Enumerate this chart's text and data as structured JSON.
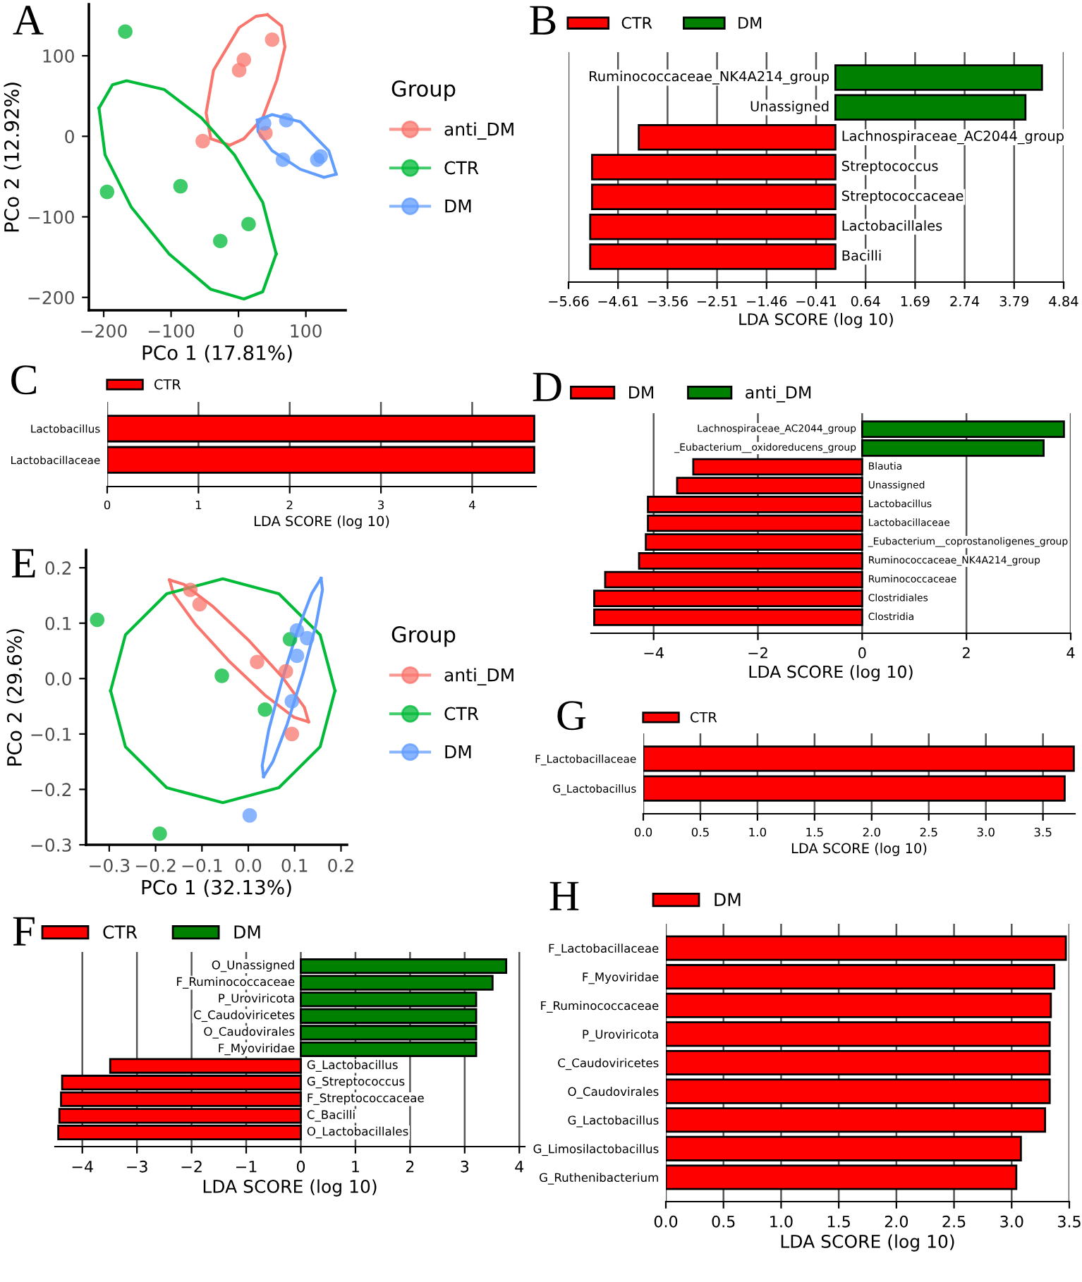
{
  "chart_data": [
    {
      "type": "scatter",
      "title": "A",
      "xlabel": "PCo 1 (17.81%)",
      "ylabel": "PCo 2 (12.92%)",
      "legend_title": "Group",
      "legend": "right",
      "marker": "circle",
      "grid": false,
      "xlim": [
        -222,
        159
      ],
      "ylim": [
        -216,
        164
      ],
      "xticks": [
        {
          "value": -200,
          "label": "−200"
        },
        {
          "value": -100,
          "label": "−100"
        },
        0,
        100
      ],
      "yticks": [
        {
          "value": -200,
          "label": "−200"
        },
        {
          "value": -100,
          "label": "−100"
        },
        0,
        100
      ],
      "series": [
        {
          "name": "anti_DM",
          "type": "scatter",
          "color": "#f8766d",
          "x": [
            50,
            8,
            1,
            -53,
            40
          ],
          "values": [
            120,
            95,
            82,
            -6,
            4
          ]
        },
        {
          "name": "CTR",
          "type": "scatter",
          "color": "#00ba38",
          "x": [
            -168,
            -195,
            -86,
            15,
            -27
          ],
          "values": [
            130,
            -69,
            -62,
            -109,
            -130
          ]
        },
        {
          "name": "DM",
          "type": "scatter",
          "color": "#619cff",
          "x": [
            38,
            71,
            66,
            117,
            122
          ],
          "values": [
            16,
            20,
            -29,
            -29,
            -25
          ]
        },
        {
          "type": "line",
          "marker": "none",
          "color": "#f8766d",
          "x": [
            -13,
            -41,
            -48,
            -37,
            1,
            26,
            43
          ],
          "values": [
            -11,
            -3,
            29,
            82,
            135,
            149,
            151
          ]
        },
        {
          "type": "line",
          "marker": "none",
          "color": "#f8766d",
          "x": [
            -13,
            8,
            36,
            57,
            69,
            64,
            43
          ],
          "values": [
            -11,
            -3,
            23,
            70,
            111,
            137,
            151
          ]
        },
        {
          "type": "line",
          "marker": "none",
          "color": "#00ba38",
          "x": [
            -207,
            -187,
            -166,
            -110,
            -55,
            -6,
            36,
            56
          ],
          "values": [
            35,
            64,
            69,
            58,
            23,
            -23,
            -82,
            -146
          ]
        },
        {
          "type": "line",
          "marker": "none",
          "color": "#00ba38",
          "x": [
            -207,
            -198,
            -159,
            -103,
            -41,
            8,
            36,
            56
          ],
          "values": [
            35,
            -23,
            -88,
            -146,
            -190,
            -202,
            -193,
            -146
          ]
        },
        {
          "type": "line",
          "marker": "none",
          "color": "#619cff",
          "x": [
            28,
            50,
            92,
            134,
            145
          ],
          "values": [
            20,
            27,
            18,
            -18,
            -47
          ]
        },
        {
          "type": "line",
          "marker": "none",
          "color": "#619cff",
          "x": [
            28,
            29,
            50,
            92,
            127,
            145
          ],
          "values": [
            20,
            6,
            -18,
            -41,
            -51,
            -47
          ]
        }
      ]
    },
    {
      "type": "bar",
      "title": "B",
      "orientation": "horizontal",
      "xlabel": "LDA SCORE (log 10)",
      "legend": "top left",
      "grid": "x",
      "xlim": [
        -5.66,
        4.84
      ],
      "xticks": [
        {
          "value": -5.66,
          "label": "−5.66"
        },
        {
          "value": -4.61,
          "label": "−4.61"
        },
        {
          "value": -3.56,
          "label": "−3.56"
        },
        {
          "value": -2.51,
          "label": "−2.51"
        },
        {
          "value": -1.46,
          "label": "−1.46"
        },
        {
          "value": -0.41,
          "label": "−0.41"
        },
        0.64,
        1.69,
        2.74,
        3.79,
        4.84
      ],
      "categories": [
        "Ruminococcaceae_NK4A214_group",
        "Unassigned",
        "Lachnospiraceae_AC2044_group",
        "Streptococcus",
        "Streptococcaceae",
        "Lactobacillales",
        "Bacilli"
      ],
      "series": [
        {
          "name": "CTR",
          "color": "#ff0000",
          "values": [
            null,
            null,
            -4.17,
            -5.16,
            -5.16,
            -5.2,
            -5.2
          ]
        },
        {
          "name": "DM",
          "color": "#008000",
          "values": [
            4.38,
            4.03,
            null,
            null,
            null,
            null,
            null
          ]
        }
      ]
    },
    {
      "type": "bar",
      "title": "C",
      "orientation": "horizontal",
      "xlabel": "LDA SCORE (log 10)",
      "legend": "top left",
      "grid": "x",
      "xlim": [
        0,
        4.7
      ],
      "xticks": [
        0,
        1,
        2,
        3,
        4
      ],
      "categories": [
        "Lactobacillus",
        "Lactobacillaceae"
      ],
      "series": [
        {
          "name": "CTR",
          "color": "#ff0000",
          "values": [
            4.68,
            4.68
          ]
        }
      ]
    },
    {
      "type": "bar",
      "title": "D",
      "orientation": "horizontal",
      "xlabel": "LDA SCORE (log 10)",
      "legend": "top left",
      "grid": "x",
      "xlim": [
        -5.2,
        4.0
      ],
      "xticks": [
        {
          "value": -4,
          "label": "−4"
        },
        {
          "value": -2,
          "label": "−2"
        },
        0,
        2,
        4
      ],
      "categories": [
        "Lachnospiraceae_AC2044_group",
        "_Eubacterium__oxidoreducens_group",
        "Blautia",
        "Unassigned",
        "Lactobacillus",
        "Lactobacillaceae",
        "_Eubacterium__coprostanoligenes_group",
        "Ruminococcaceae_NK4A214_group",
        "Ruminococcaceae",
        "Clostridiales",
        "Clostridia"
      ],
      "series": [
        {
          "name": "DM",
          "color": "#ff0000",
          "values": [
            null,
            null,
            -3.24,
            -3.55,
            -4.11,
            -4.11,
            -4.15,
            -4.28,
            -4.93,
            -5.14,
            -5.14
          ]
        },
        {
          "name": "anti_DM",
          "color": "#008000",
          "values": [
            3.87,
            3.48,
            null,
            null,
            null,
            null,
            null,
            null,
            null,
            null,
            null
          ]
        }
      ]
    },
    {
      "type": "scatter",
      "title": "E",
      "xlabel": "PCo 1 (32.13%)",
      "ylabel": "PCo 2 (29.6%)",
      "legend_title": "Group",
      "legend": "right",
      "marker": "circle",
      "grid": false,
      "xlim": [
        -0.35,
        0.213
      ],
      "ylim": [
        -0.3,
        0.232
      ],
      "xticks": [
        {
          "value": -0.3,
          "label": "−0.3"
        },
        {
          "value": -0.2,
          "label": "−0.2"
        },
        {
          "value": -0.1,
          "label": "−0.1"
        },
        {
          "value": 0,
          "label": "0.0"
        },
        {
          "value": 0.1,
          "label": "0.1"
        },
        {
          "value": 0.2,
          "label": "0.2"
        }
      ],
      "yticks": [
        {
          "value": -0.3,
          "label": "−0.3"
        },
        {
          "value": -0.2,
          "label": "−0.2"
        },
        {
          "value": -0.1,
          "label": "−0.1"
        },
        {
          "value": 0,
          "label": "0.0"
        },
        {
          "value": 0.1,
          "label": "0.1"
        },
        {
          "value": 0.2,
          "label": "0.2"
        }
      ],
      "series": [
        {
          "name": "anti_DM",
          "type": "scatter",
          "color": "#f8766d",
          "x": [
            -0.125,
            -0.105,
            0.019,
            0.081,
            0.094
          ],
          "values": [
            0.16,
            0.134,
            0.03,
            0.013,
            -0.1
          ]
        },
        {
          "name": "CTR",
          "type": "scatter",
          "color": "#00ba38",
          "x": [
            -0.326,
            -0.057,
            0.036,
            -0.191,
            0.09
          ],
          "values": [
            0.106,
            0.005,
            -0.056,
            -0.28,
            0.071
          ]
        },
        {
          "name": "DM",
          "type": "scatter",
          "color": "#619cff",
          "x": [
            0.105,
            0.127,
            0.105,
            0.094,
            0.003
          ],
          "values": [
            0.087,
            0.073,
            0.041,
            -0.041,
            -0.247
          ]
        },
        {
          "type": "line",
          "marker": "none",
          "color": "#f8766d",
          "x": [
            -0.17,
            -0.139,
            -0.076,
            0.002,
            0.074,
            0.121,
            0.13
          ],
          "values": [
            0.178,
            0.17,
            0.13,
            0.068,
            0.002,
            -0.052,
            -0.078
          ]
        },
        {
          "type": "line",
          "marker": "none",
          "color": "#f8766d",
          "x": [
            -0.17,
            -0.161,
            -0.114,
            -0.042,
            0.036,
            0.099,
            0.13
          ],
          "values": [
            0.178,
            0.152,
            0.098,
            0.032,
            -0.03,
            -0.07,
            -0.078
          ]
        },
        {
          "type": "line",
          "marker": "none",
          "color": "#00ba38",
          "x": [
            -0.297,
            -0.265,
            -0.176,
            -0.055,
            0.066,
            0.155,
            0.187
          ],
          "values": [
            -0.022,
            0.079,
            0.153,
            0.18,
            0.153,
            0.079,
            -0.022
          ]
        },
        {
          "type": "line",
          "marker": "none",
          "color": "#00ba38",
          "x": [
            -0.297,
            -0.265,
            -0.176,
            -0.055,
            0.066,
            0.155,
            0.187
          ],
          "values": [
            -0.022,
            -0.123,
            -0.197,
            -0.224,
            -0.197,
            -0.123,
            -0.022
          ]
        },
        {
          "type": "line",
          "marker": "none",
          "color": "#619cff",
          "x": [
            0.033,
            0.053,
            0.084,
            0.118,
            0.146,
            0.16,
            0.157
          ],
          "values": [
            -0.177,
            -0.15,
            -0.082,
            0.009,
            0.097,
            0.16,
            0.181
          ]
        },
        {
          "type": "line",
          "marker": "none",
          "color": "#619cff",
          "x": [
            0.033,
            0.03,
            0.044,
            0.072,
            0.106,
            0.137,
            0.157
          ],
          "values": [
            -0.177,
            -0.157,
            -0.093,
            -0.005,
            0.086,
            0.154,
            0.181
          ]
        }
      ]
    },
    {
      "type": "bar",
      "title": "F",
      "orientation": "horizontal",
      "xlabel": "LDA SCORE (log 10)",
      "legend": "top left",
      "grid": "x",
      "xlim": [
        -4.5,
        4.1
      ],
      "xticks": [
        {
          "value": -4,
          "label": "−4"
        },
        {
          "value": -3,
          "label": "−3"
        },
        {
          "value": -2,
          "label": "−2"
        },
        {
          "value": -1,
          "label": "−1"
        },
        0,
        1,
        2,
        3,
        4
      ],
      "categories": [
        "O_Unassigned",
        "F_Ruminococcaceae",
        "P_Uroviricota",
        "C_Caudoviricetes",
        "O_Caudovirales",
        "F_Myoviridae",
        "G_Lactobacillus",
        "G_Streptococcus",
        "F_Streptococcaceae",
        "C_Bacilli",
        "O_Lactobacillales"
      ],
      "series": [
        {
          "name": "CTR",
          "color": "#ff0000",
          "values": [
            null,
            null,
            null,
            null,
            null,
            null,
            -3.49,
            -4.37,
            -4.39,
            -4.42,
            -4.44
          ]
        },
        {
          "name": "DM",
          "color": "#008000",
          "values": [
            3.76,
            3.51,
            3.21,
            3.21,
            3.21,
            3.21,
            null,
            null,
            null,
            null,
            null
          ]
        }
      ]
    },
    {
      "type": "bar",
      "title": "G",
      "orientation": "horizontal",
      "xlabel": "LDA SCORE (log 10)",
      "legend": "top left",
      "grid": "x",
      "xlim": [
        0,
        3.78
      ],
      "xticks": [
        {
          "value": 0,
          "label": "0.0"
        },
        {
          "value": 0.5,
          "label": "0.5"
        },
        {
          "value": 1,
          "label": "1.0"
        },
        {
          "value": 1.5,
          "label": "1.5"
        },
        {
          "value": 2,
          "label": "2.0"
        },
        {
          "value": 2.5,
          "label": "2.5"
        },
        {
          "value": 3,
          "label": "3.0"
        },
        {
          "value": 3.5,
          "label": "3.5"
        }
      ],
      "categories": [
        "F_Lactobacillaceae",
        "G_Lactobacillus"
      ],
      "series": [
        {
          "name": "CTR",
          "color": "#ff0000",
          "values": [
            3.77,
            3.69
          ]
        }
      ]
    },
    {
      "type": "bar",
      "title": "H",
      "orientation": "horizontal",
      "xlabel": "LDA SCORE (log 10)",
      "legend": "top left",
      "grid": "x",
      "xlim": [
        0,
        3.5
      ],
      "xticks": [
        {
          "value": 0,
          "label": "0.0"
        },
        {
          "value": 0.5,
          "label": "0.5"
        },
        {
          "value": 1,
          "label": "1.0"
        },
        {
          "value": 1.5,
          "label": "1.5"
        },
        {
          "value": 2,
          "label": "2.0"
        },
        {
          "value": 2.5,
          "label": "2.5"
        },
        {
          "value": 3,
          "label": "3.0"
        },
        {
          "value": 3.5,
          "label": "3.5"
        }
      ],
      "categories": [
        "F_Lactobacillaceae",
        "F_Myoviridae",
        "F_Ruminococcaceae",
        "P_Uroviricota",
        "C_Caudoviricetes",
        "O_Caudovirales",
        "G_Lactobacillus",
        "G_Limosilactobacillus",
        "G_Ruthenibacterium"
      ],
      "series": [
        {
          "name": "DM",
          "color": "#ff0000",
          "values": [
            3.47,
            3.37,
            3.34,
            3.33,
            3.33,
            3.33,
            3.29,
            3.08,
            3.04
          ]
        }
      ]
    }
  ]
}
